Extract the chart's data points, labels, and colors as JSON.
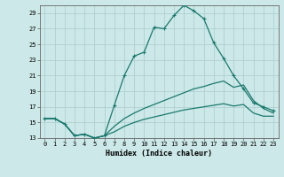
{
  "xlabel": "Humidex (Indice chaleur)",
  "bg_color": "#cce8e8",
  "line_color": "#1a7a6e",
  "grid_color": "#aacccc",
  "xlim": [
    -0.5,
    23.5
  ],
  "ylim": [
    13,
    30
  ],
  "xticks": [
    0,
    1,
    2,
    3,
    4,
    5,
    6,
    7,
    8,
    9,
    10,
    11,
    12,
    13,
    14,
    15,
    16,
    17,
    18,
    19,
    20,
    21,
    22,
    23
  ],
  "yticks": [
    13,
    15,
    17,
    19,
    21,
    23,
    25,
    27,
    29
  ],
  "line1_x": [
    0,
    1,
    2,
    3,
    4,
    5,
    6,
    7,
    8,
    9,
    10,
    11,
    12,
    13,
    14,
    15,
    16,
    17,
    18,
    19,
    20,
    21,
    22,
    23
  ],
  "line1_y": [
    15.5,
    15.5,
    14.8,
    13.3,
    13.5,
    13.0,
    13.3,
    17.2,
    21.0,
    23.5,
    24.0,
    27.2,
    27.0,
    28.7,
    30.0,
    29.3,
    28.3,
    25.2,
    23.2,
    21.0,
    19.3,
    17.5,
    17.0,
    16.5
  ],
  "line2_x": [
    0,
    1,
    2,
    3,
    4,
    5,
    6,
    7,
    8,
    9,
    10,
    11,
    12,
    13,
    14,
    15,
    16,
    17,
    18,
    19,
    20,
    21,
    22,
    23
  ],
  "line2_y": [
    15.5,
    15.5,
    14.8,
    13.3,
    13.5,
    13.0,
    13.3,
    14.5,
    15.5,
    16.2,
    16.8,
    17.3,
    17.8,
    18.3,
    18.8,
    19.3,
    19.6,
    20.0,
    20.3,
    19.5,
    19.8,
    17.8,
    16.8,
    16.2
  ],
  "line3_x": [
    0,
    1,
    2,
    3,
    4,
    5,
    6,
    7,
    8,
    9,
    10,
    11,
    12,
    13,
    14,
    15,
    16,
    17,
    18,
    19,
    20,
    21,
    22,
    23
  ],
  "line3_y": [
    15.5,
    15.5,
    14.8,
    13.3,
    13.5,
    13.0,
    13.3,
    13.8,
    14.5,
    15.0,
    15.4,
    15.7,
    16.0,
    16.3,
    16.6,
    16.8,
    17.0,
    17.2,
    17.4,
    17.1,
    17.3,
    16.2,
    15.8,
    15.8
  ]
}
